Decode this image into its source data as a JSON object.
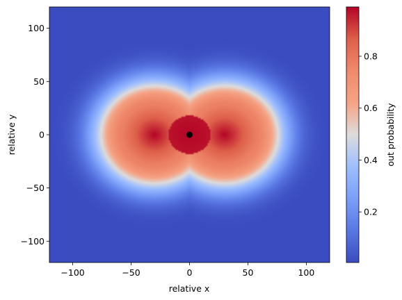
{
  "chart_data": {
    "type": "heatmap",
    "xlabel": "relative x",
    "ylabel": "relative y",
    "xlim": [
      -120,
      120
    ],
    "ylim": [
      -120,
      120
    ],
    "x_ticks": [
      -100,
      -50,
      0,
      50,
      100
    ],
    "y_ticks": [
      -100,
      -50,
      0,
      50,
      100
    ],
    "x_tick_labels": [
      "−100",
      "−50",
      "0",
      "50",
      "100"
    ],
    "y_tick_labels": [
      "−100",
      "−50",
      "0",
      "50",
      "100"
    ],
    "grid": false,
    "colormap": "coolwarm",
    "colorbar": {
      "label": "out probability",
      "range": [
        0.005,
        0.99
      ],
      "ticks": [
        0.2,
        0.4,
        0.6,
        0.8
      ],
      "tick_labels": [
        "0.2",
        "0.4",
        "0.6",
        "0.8"
      ],
      "placement": "right"
    },
    "field": {
      "description_type": "two-lobe radial",
      "lobe_centers": [
        [
          -30,
          0
        ],
        [
          30,
          0
        ]
      ],
      "max_value": 0.99,
      "min_value": 0.005
    },
    "marker": {
      "x": 0,
      "y": 0,
      "color": "#000000"
    }
  }
}
